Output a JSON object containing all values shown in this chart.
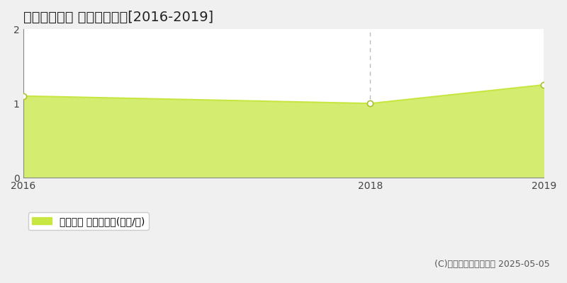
{
  "title": "磐田市東平松 土地価格推移[2016-2019]",
  "x_values": [
    2016,
    2018,
    2019
  ],
  "y_values": [
    1.1,
    1.0,
    1.25
  ],
  "line_color": "#c8e642",
  "fill_color": "#d4ed70",
  "marker_color": "#ffffff",
  "marker_edge_color": "#a8c030",
  "xlim": [
    2016,
    2019
  ],
  "ylim": [
    0,
    2
  ],
  "yticks": [
    0,
    1,
    2
  ],
  "xticks": [
    2016,
    2018,
    2019
  ],
  "vline_x": 2018,
  "vline_color": "#bbbbbb",
  "hline_y": 1,
  "hline_color": "#cccccc",
  "legend_label": "土地価格 平均坪単価(万円/坪)",
  "legend_color": "#c8e642",
  "copyright_text": "(C)土地価格ドットコム 2025-05-05",
  "background_color": "#f0f0f0",
  "plot_bg_color": "#ffffff",
  "title_fontsize": 14,
  "tick_fontsize": 10,
  "legend_fontsize": 10,
  "copyright_fontsize": 9
}
